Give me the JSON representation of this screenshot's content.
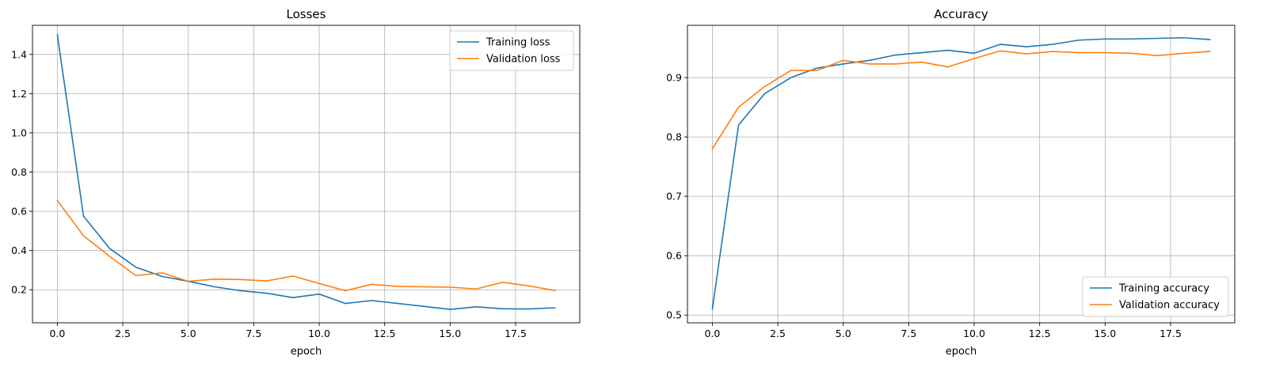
{
  "figure": {
    "colors": {
      "series1": "#1f77b4",
      "series2": "#ff7f0e",
      "grid": "#b0b0b0",
      "axes": "#000000"
    }
  },
  "chart_data": [
    {
      "type": "line",
      "title": "Losses",
      "xlabel": "epoch",
      "ylabel": "",
      "xlim": [
        -0.95,
        19.95
      ],
      "ylim": [
        0.0315,
        1.5485
      ],
      "xticks": [
        0.0,
        2.5,
        5.0,
        7.5,
        10.0,
        12.5,
        15.0,
        17.5
      ],
      "xtick_labels": [
        "0.0",
        "2.5",
        "5.0",
        "7.5",
        "10.0",
        "12.5",
        "15.0",
        "17.5"
      ],
      "yticks": [
        0.2,
        0.4,
        0.6,
        0.8,
        1.0,
        1.2,
        1.4
      ],
      "ytick_labels": [
        "0.2",
        "0.4",
        "0.6",
        "0.8",
        "1.0",
        "1.2",
        "1.4"
      ],
      "grid": true,
      "legend_position": "upper right",
      "x": [
        0,
        1,
        2,
        3,
        4,
        5,
        6,
        7,
        8,
        9,
        10,
        11,
        12,
        13,
        14,
        15,
        16,
        17,
        18,
        19
      ],
      "series": [
        {
          "name": "Training loss",
          "color": "#1f77b4",
          "values": [
            1.5,
            0.575,
            0.41,
            0.315,
            0.268,
            0.243,
            0.215,
            0.195,
            0.182,
            0.16,
            0.178,
            0.13,
            0.145,
            0.13,
            0.115,
            0.1,
            0.113,
            0.103,
            0.102,
            0.108
          ]
        },
        {
          "name": "Validation loss",
          "color": "#ff7f0e",
          "values": [
            0.655,
            0.475,
            0.37,
            0.272,
            0.286,
            0.243,
            0.254,
            0.252,
            0.245,
            0.27,
            0.232,
            0.195,
            0.228,
            0.217,
            0.215,
            0.213,
            0.204,
            0.238,
            0.22,
            0.196
          ]
        }
      ]
    },
    {
      "type": "line",
      "title": "Accuracy",
      "xlabel": "epoch",
      "ylabel": "",
      "xlim": [
        -0.95,
        19.95
      ],
      "ylim": [
        0.487,
        0.988
      ],
      "xticks": [
        0.0,
        2.5,
        5.0,
        7.5,
        10.0,
        12.5,
        15.0,
        17.5
      ],
      "xtick_labels": [
        "0.0",
        "2.5",
        "5.0",
        "7.5",
        "10.0",
        "12.5",
        "15.0",
        "17.5"
      ],
      "yticks": [
        0.5,
        0.6,
        0.7,
        0.8,
        0.9
      ],
      "ytick_labels": [
        "0.5",
        "0.6",
        "0.7",
        "0.8",
        "0.9"
      ],
      "grid": true,
      "legend_position": "lower right",
      "x": [
        0,
        1,
        2,
        3,
        4,
        5,
        6,
        7,
        8,
        9,
        10,
        11,
        12,
        13,
        14,
        15,
        16,
        17,
        18,
        19
      ],
      "series": [
        {
          "name": "Training accuracy",
          "color": "#1f77b4",
          "values": [
            0.51,
            0.82,
            0.873,
            0.9,
            0.916,
            0.923,
            0.929,
            0.938,
            0.942,
            0.946,
            0.941,
            0.956,
            0.952,
            0.956,
            0.963,
            0.965,
            0.965,
            0.966,
            0.967,
            0.964
          ]
        },
        {
          "name": "Validation accuracy",
          "color": "#ff7f0e",
          "values": [
            0.78,
            0.85,
            0.885,
            0.912,
            0.912,
            0.929,
            0.923,
            0.923,
            0.926,
            0.918,
            0.932,
            0.945,
            0.94,
            0.944,
            0.942,
            0.942,
            0.941,
            0.937,
            0.941,
            0.944
          ]
        }
      ]
    }
  ]
}
